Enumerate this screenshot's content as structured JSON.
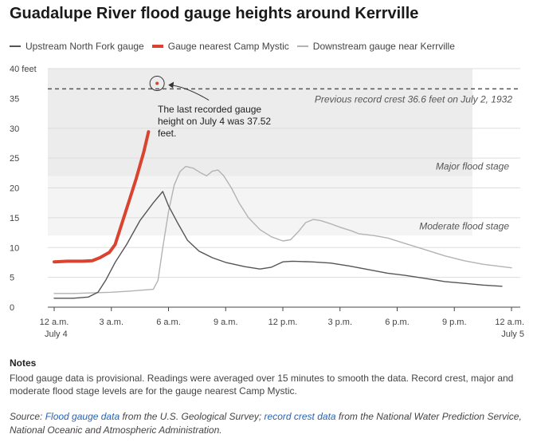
{
  "title": "Guadalupe River flood gauge heights around Kerrville",
  "legend": [
    {
      "label": "Upstream North Fork gauge",
      "color": "#555555"
    },
    {
      "label": "Gauge nearest Camp Mystic",
      "color": "#d9432f"
    },
    {
      "label": "Downstream gauge near Kerrville",
      "color": "#b3b3b3"
    }
  ],
  "chart_data": {
    "type": "line",
    "title": "Guadalupe River flood gauge heights around Kerrville",
    "xlabel": "",
    "ylabel": "",
    "x_unit": "hours since 12 a.m. July 4",
    "xlim": [
      0,
      24
    ],
    "ylim": [
      0,
      40
    ],
    "y_ticks": [
      {
        "value": 0,
        "label": "0"
      },
      {
        "value": 5,
        "label": "5"
      },
      {
        "value": 10,
        "label": "10"
      },
      {
        "value": 15,
        "label": "15"
      },
      {
        "value": 20,
        "label": "20"
      },
      {
        "value": 25,
        "label": "25"
      },
      {
        "value": 30,
        "label": "30"
      },
      {
        "value": 35,
        "label": "35"
      },
      {
        "value": 40,
        "label": "40 feet"
      }
    ],
    "x_ticks": [
      {
        "value": 0,
        "label": "12 a.m.",
        "sub": "July 4"
      },
      {
        "value": 3,
        "label": "3 a.m.",
        "sub": ""
      },
      {
        "value": 6,
        "label": "6 a.m.",
        "sub": ""
      },
      {
        "value": 9,
        "label": "9 a.m.",
        "sub": ""
      },
      {
        "value": 12,
        "label": "12 p.m.",
        "sub": ""
      },
      {
        "value": 15,
        "label": "3 p.m.",
        "sub": ""
      },
      {
        "value": 18,
        "label": "6 p.m.",
        "sub": ""
      },
      {
        "value": 21,
        "label": "9 p.m.",
        "sub": ""
      },
      {
        "value": 24,
        "label": "12 a.m.",
        "sub": "July 5"
      }
    ],
    "bands": [
      {
        "label": "Major flood stage",
        "from": 22,
        "to": 40
      },
      {
        "label": "Moderate flood stage",
        "from": 12,
        "to": 22
      }
    ],
    "record": {
      "value": 36.6,
      "label": "Previous record crest 36.6 feet on July 2, 1932"
    },
    "series": [
      {
        "name": "Upstream North Fork gauge",
        "color": "#555555",
        "points": [
          [
            0,
            1.5
          ],
          [
            1,
            1.5
          ],
          [
            1.8,
            1.7
          ],
          [
            2.3,
            2.5
          ],
          [
            2.7,
            4.5
          ],
          [
            3.2,
            7.5
          ],
          [
            3.8,
            10.5
          ],
          [
            4.5,
            14.5
          ],
          [
            5.2,
            17.5
          ],
          [
            5.7,
            19.4
          ],
          [
            6,
            17
          ],
          [
            6.5,
            14
          ],
          [
            7,
            11.2
          ],
          [
            7.6,
            9.4
          ],
          [
            8.3,
            8.3
          ],
          [
            9,
            7.5
          ],
          [
            10,
            6.8
          ],
          [
            10.8,
            6.4
          ],
          [
            11.4,
            6.7
          ],
          [
            12,
            7.6
          ],
          [
            12.5,
            7.7
          ],
          [
            13.5,
            7.6
          ],
          [
            14.5,
            7.4
          ],
          [
            15.5,
            6.9
          ],
          [
            16.5,
            6.3
          ],
          [
            17.5,
            5.7
          ],
          [
            18.5,
            5.3
          ],
          [
            19.5,
            4.8
          ],
          [
            20.5,
            4.3
          ],
          [
            21.5,
            4
          ],
          [
            22.5,
            3.7
          ],
          [
            23.5,
            3.5
          ]
        ]
      },
      {
        "name": "Gauge nearest Camp Mystic",
        "color": "#d9432f",
        "points": [
          [
            0,
            7.6
          ],
          [
            0.7,
            7.7
          ],
          [
            1.5,
            7.7
          ],
          [
            2,
            7.8
          ],
          [
            2.4,
            8.3
          ],
          [
            2.9,
            9.2
          ],
          [
            3.2,
            10.5
          ],
          [
            3.5,
            13.5
          ],
          [
            3.9,
            17.5
          ],
          [
            4.3,
            21.5
          ],
          [
            4.7,
            26
          ],
          [
            4.95,
            29.4
          ]
        ]
      },
      {
        "name": "Downstream gauge near Kerrville",
        "color": "#b3b3b3",
        "points": [
          [
            0,
            2.3
          ],
          [
            1,
            2.3
          ],
          [
            2,
            2.4
          ],
          [
            3,
            2.5
          ],
          [
            4,
            2.7
          ],
          [
            4.8,
            2.9
          ],
          [
            5.2,
            3
          ],
          [
            5.45,
            4.5
          ],
          [
            5.7,
            10
          ],
          [
            6,
            16
          ],
          [
            6.3,
            20.5
          ],
          [
            6.6,
            22.7
          ],
          [
            6.9,
            23.6
          ],
          [
            7.3,
            23.3
          ],
          [
            7.7,
            22.5
          ],
          [
            8,
            22
          ],
          [
            8.3,
            22.8
          ],
          [
            8.6,
            23
          ],
          [
            8.9,
            22
          ],
          [
            9.3,
            20
          ],
          [
            9.7,
            17.5
          ],
          [
            10.2,
            15
          ],
          [
            10.8,
            13
          ],
          [
            11.4,
            11.8
          ],
          [
            12,
            11.1
          ],
          [
            12.4,
            11.3
          ],
          [
            12.8,
            12.6
          ],
          [
            13.2,
            14.2
          ],
          [
            13.6,
            14.7
          ],
          [
            14,
            14.5
          ],
          [
            14.5,
            14
          ],
          [
            15,
            13.4
          ],
          [
            15.6,
            12.8
          ],
          [
            16,
            12.3
          ],
          [
            16.8,
            12
          ],
          [
            17.5,
            11.6
          ],
          [
            18.5,
            10.6
          ],
          [
            19.5,
            9.6
          ],
          [
            20.5,
            8.6
          ],
          [
            21.5,
            7.8
          ],
          [
            22.5,
            7.2
          ],
          [
            23.5,
            6.8
          ],
          [
            24,
            6.6
          ]
        ]
      }
    ],
    "annotation": {
      "text_lines": [
        "The last recorded gauge",
        "height on July 4 was 37.52",
        "feet."
      ],
      "value": 37.52,
      "at_x": 5.4
    }
  },
  "notes": {
    "heading": "Notes",
    "text": "Flood gauge data is provisional. Readings were averaged over 15 minutes to smooth the data. Record crest, major and moderate flood stage levels are for the gauge nearest Camp Mystic."
  },
  "source": {
    "prefix": "Source: ",
    "link1": "Flood gauge data",
    "mid": " from the U.S. Geological Survey; ",
    "link2": "record crest data",
    "suffix": " from the National Water Prediction Service, National Oceanic and Atmospheric Administration."
  }
}
